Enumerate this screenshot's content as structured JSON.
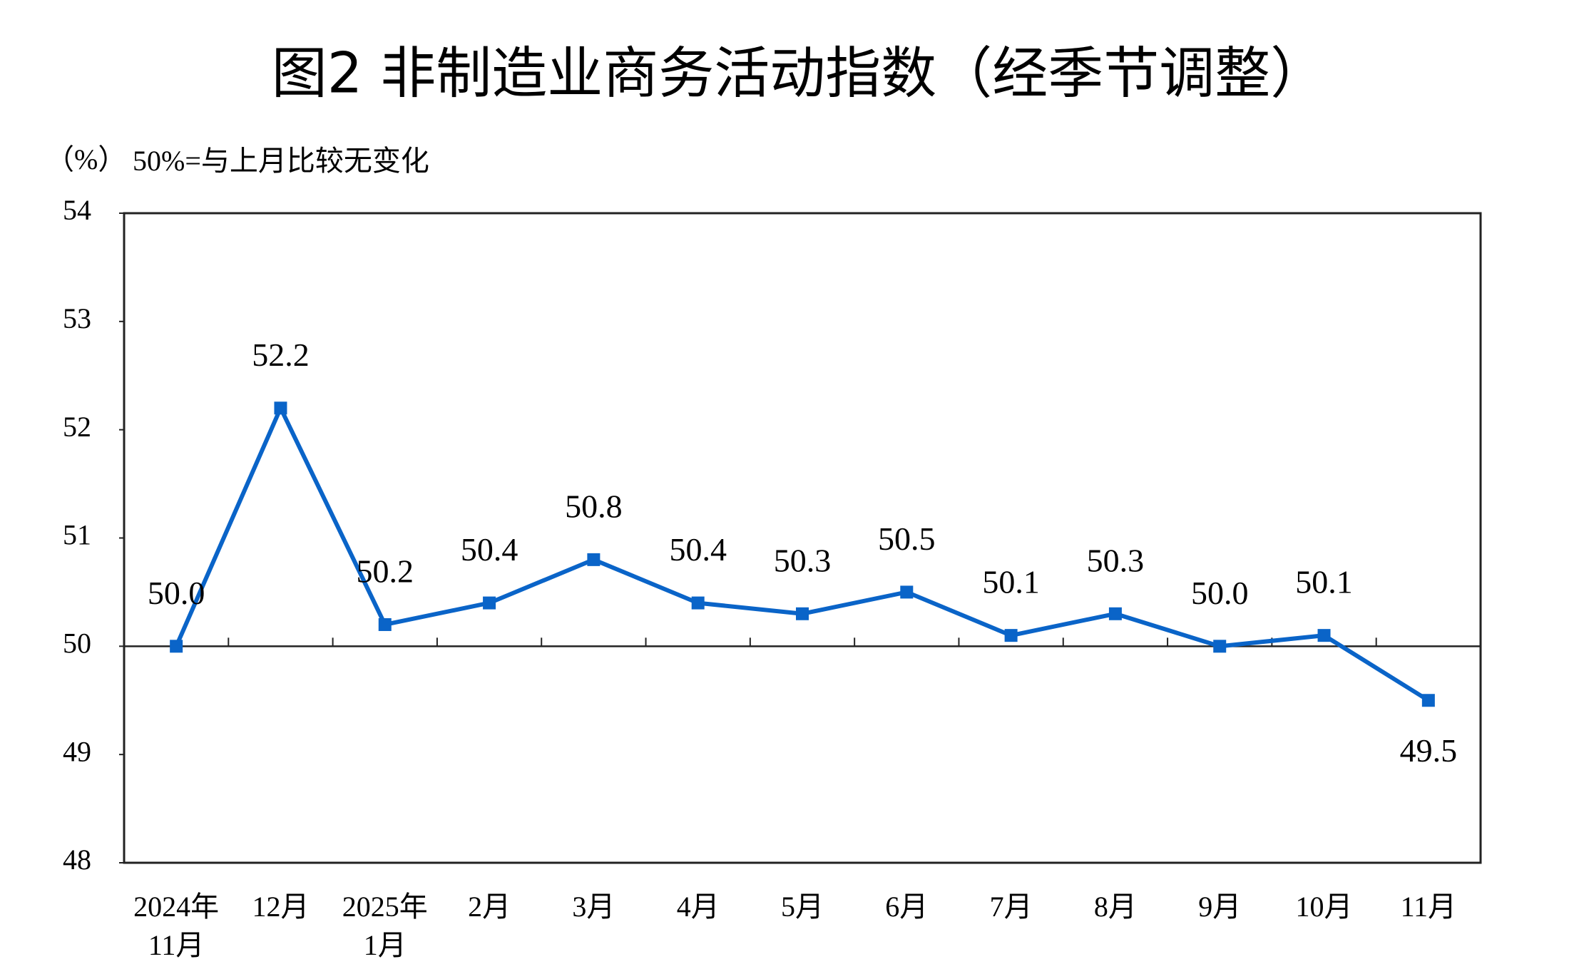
{
  "chart_data": {
    "type": "line",
    "title": "图2  非制造业商务活动指数（经季节调整）",
    "y_label": "（%）",
    "note": "50%=与上月比较无变化",
    "categories": [
      "2024年\n11月",
      "12月",
      "2025年\n1月",
      "2月",
      "3月",
      "4月",
      "5月",
      "6月",
      "7月",
      "8月",
      "9月",
      "10月",
      "11月"
    ],
    "series": [
      {
        "color": "#0a64c8",
        "values": [
          50.0,
          52.2,
          50.2,
          50.4,
          50.8,
          50.4,
          50.3,
          50.5,
          50.1,
          50.3,
          50.0,
          50.1,
          49.5
        ],
        "value_labels": [
          "50.0",
          "52.2",
          "50.2",
          "50.4",
          "50.8",
          "50.4",
          "50.3",
          "50.5",
          "50.1",
          "50.3",
          "50.0",
          "50.1",
          "49.5"
        ]
      }
    ],
    "ylim": [
      48,
      54
    ],
    "yticks": [
      48,
      49,
      50,
      51,
      52,
      53,
      54
    ],
    "reference_line": 50
  }
}
